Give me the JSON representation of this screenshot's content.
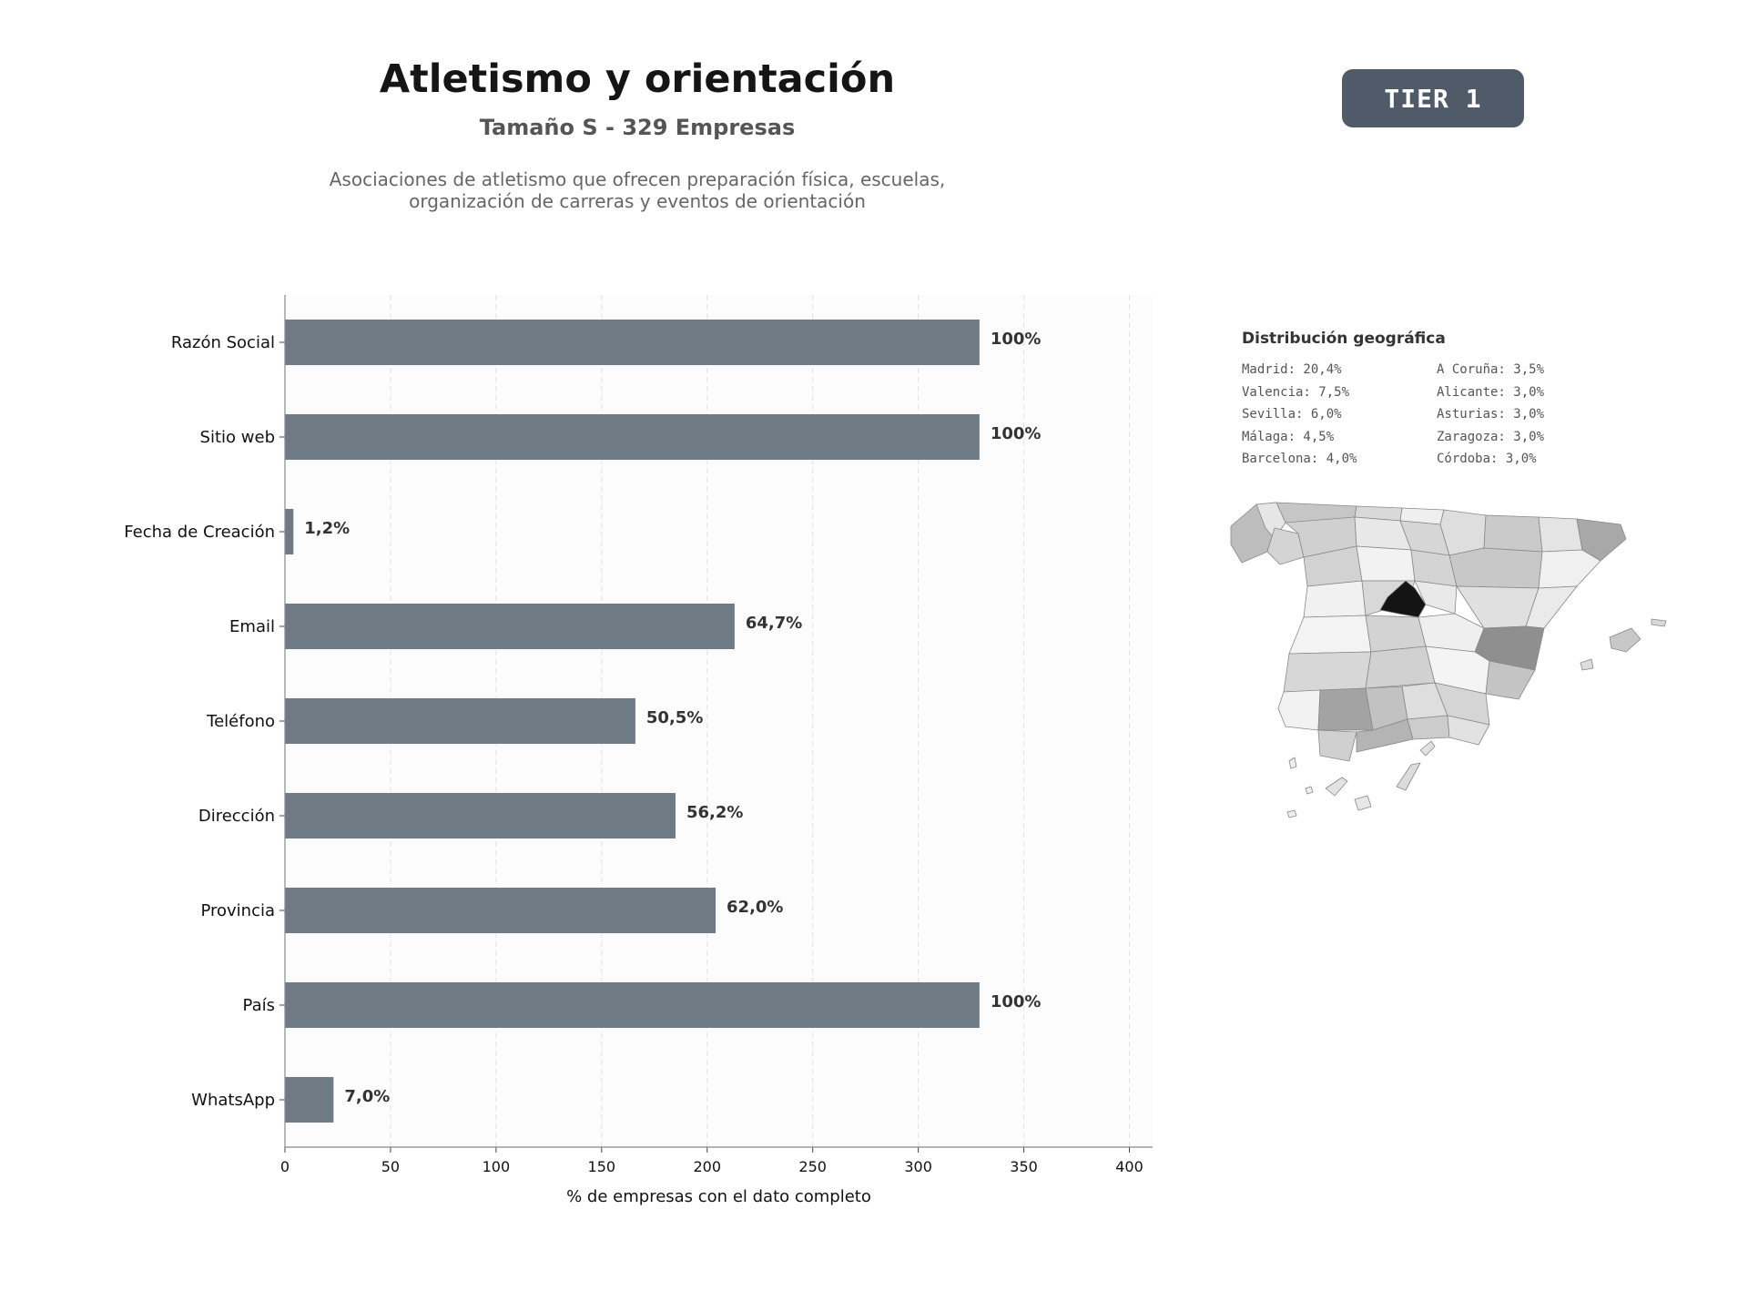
{
  "header": {
    "title": "Atletismo y orientación",
    "subtitle": "Tamaño S - 329 Empresas",
    "description_line1": "Asociaciones de atletismo que ofrecen preparación física, escuelas,",
    "description_line2": "organización de carreras y eventos de orientación"
  },
  "badge": {
    "label": "TIER 1",
    "color": "#4f5b68"
  },
  "chart_data": {
    "type": "bar",
    "orientation": "horizontal",
    "categories": [
      "Razón Social",
      "Sitio web",
      "Fecha de Creación",
      "Email",
      "Teléfono",
      "Dirección",
      "Provincia",
      "País",
      "WhatsApp"
    ],
    "values": [
      329,
      329,
      4,
      213,
      166,
      185,
      204,
      329,
      23
    ],
    "value_labels": [
      "100%",
      "100%",
      "1,2%",
      "64,7%",
      "50,5%",
      "56,2%",
      "62,0%",
      "100%",
      "7,0%"
    ],
    "xlabel": "% de empresas con el dato completo",
    "ylabel": "",
    "xlim": [
      0,
      411
    ],
    "xticks": [
      0,
      50,
      100,
      150,
      200,
      250,
      300,
      350,
      400
    ],
    "grid": "vertical dashed",
    "bar_color": "#6e7a84"
  },
  "geo": {
    "title": "Distribución geográfica",
    "items": [
      "Madrid: 20,4%",
      "A Coruña: 3,5%",
      "Valencia: 7,5%",
      "Alicante: 3,0%",
      "Sevilla: 6,0%",
      "Asturias: 3,0%",
      "Málaga: 4,5%",
      "Zaragoza: 3,0%",
      "Barcelona: 4,0%",
      "Córdoba: 3,0%"
    ]
  }
}
